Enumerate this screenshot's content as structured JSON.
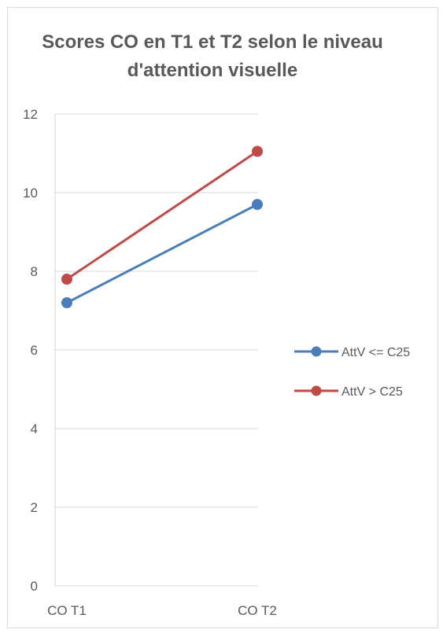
{
  "chart_data": {
    "type": "line",
    "title": "Scores CO en T1 et T2  selon le niveau d'attention visuelle",
    "categories": [
      "CO T1",
      "CO  T2"
    ],
    "ylim": [
      0,
      12
    ],
    "yticks": [
      "0",
      "2",
      "4",
      "6",
      "8",
      "10",
      "12"
    ],
    "grid": true,
    "legend_position": "right",
    "series": [
      {
        "name": "AttV <= C25",
        "values": [
          7.2,
          9.7
        ],
        "color": "#4a7ebb"
      },
      {
        "name": "AttV > C25",
        "values": [
          7.8,
          11.05
        ],
        "color": "#be4b48"
      }
    ]
  }
}
